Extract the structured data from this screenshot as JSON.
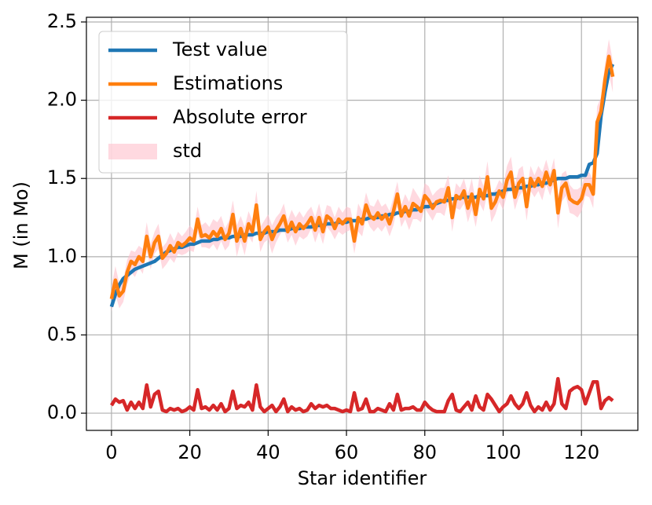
{
  "chart_data": {
    "type": "line",
    "xlabel": "Star identifier",
    "ylabel": "M (in Mo)",
    "xlim": [
      -6.4,
      134.4
    ],
    "ylim": [
      -0.11,
      2.53
    ],
    "xticks": [
      0,
      20,
      40,
      60,
      80,
      100,
      120
    ],
    "yticks": [
      {
        "value": 0,
        "label": "0.0"
      },
      0.5,
      {
        "value": 1,
        "label": "1.0"
      },
      1.5,
      {
        "value": 2,
        "label": "2.0"
      },
      2.5
    ],
    "grid": true,
    "legend": "upper left",
    "x": [
      0,
      1,
      2,
      3,
      4,
      5,
      6,
      7,
      8,
      9,
      10,
      11,
      12,
      13,
      14,
      15,
      16,
      17,
      18,
      19,
      20,
      21,
      22,
      23,
      24,
      25,
      26,
      27,
      28,
      29,
      30,
      31,
      32,
      33,
      34,
      35,
      36,
      37,
      38,
      39,
      40,
      41,
      42,
      43,
      44,
      45,
      46,
      47,
      48,
      49,
      50,
      51,
      52,
      53,
      54,
      55,
      56,
      57,
      58,
      59,
      60,
      61,
      62,
      63,
      64,
      65,
      66,
      67,
      68,
      69,
      70,
      71,
      72,
      73,
      74,
      75,
      76,
      77,
      78,
      79,
      80,
      81,
      82,
      83,
      84,
      85,
      86,
      87,
      88,
      89,
      90,
      91,
      92,
      93,
      94,
      95,
      96,
      97,
      98,
      99,
      100,
      101,
      102,
      103,
      104,
      105,
      106,
      107,
      108,
      109,
      110,
      111,
      112,
      113,
      114,
      115,
      116,
      117,
      118,
      119,
      120,
      121,
      122,
      123,
      124,
      125,
      126,
      127,
      128
    ],
    "series": [
      {
        "name": "Test value",
        "color": "#1f77b4",
        "values": [
          0.68,
          0.76,
          0.82,
          0.86,
          0.88,
          0.9,
          0.92,
          0.93,
          0.94,
          0.95,
          0.96,
          0.97,
          0.99,
          1.01,
          1.03,
          1.04,
          1.05,
          1.06,
          1.06,
          1.07,
          1.08,
          1.08,
          1.09,
          1.1,
          1.1,
          1.1,
          1.11,
          1.11,
          1.12,
          1.12,
          1.12,
          1.13,
          1.13,
          1.13,
          1.14,
          1.14,
          1.14,
          1.15,
          1.15,
          1.15,
          1.16,
          1.16,
          1.16,
          1.17,
          1.17,
          1.17,
          1.18,
          1.18,
          1.18,
          1.19,
          1.19,
          1.19,
          1.2,
          1.2,
          1.2,
          1.21,
          1.21,
          1.21,
          1.22,
          1.22,
          1.22,
          1.23,
          1.23,
          1.23,
          1.24,
          1.24,
          1.25,
          1.25,
          1.25,
          1.26,
          1.26,
          1.27,
          1.27,
          1.28,
          1.28,
          1.29,
          1.29,
          1.3,
          1.3,
          1.31,
          1.32,
          1.32,
          1.33,
          1.34,
          1.35,
          1.36,
          1.36,
          1.37,
          1.37,
          1.38,
          1.38,
          1.38,
          1.38,
          1.38,
          1.39,
          1.39,
          1.39,
          1.4,
          1.4,
          1.41,
          1.42,
          1.43,
          1.43,
          1.44,
          1.44,
          1.44,
          1.45,
          1.45,
          1.46,
          1.46,
          1.47,
          1.47,
          1.48,
          1.49,
          1.5,
          1.5,
          1.5,
          1.51,
          1.51,
          1.51,
          1.52,
          1.52,
          1.59,
          1.6,
          1.66,
          1.9,
          2.05,
          2.18,
          2.23
        ]
      },
      {
        "name": "Estimations",
        "color": "#ff7f0e",
        "values": [
          0.73,
          0.85,
          0.75,
          0.78,
          0.9,
          0.97,
          0.95,
          1.0,
          0.97,
          1.13,
          1.0,
          1.09,
          1.13,
          0.99,
          1.02,
          1.07,
          1.03,
          1.09,
          1.07,
          1.09,
          1.12,
          1.1,
          1.24,
          1.13,
          1.14,
          1.12,
          1.16,
          1.13,
          1.18,
          1.11,
          1.15,
          1.27,
          1.1,
          1.18,
          1.1,
          1.21,
          1.16,
          1.33,
          1.11,
          1.16,
          1.19,
          1.11,
          1.17,
          1.21,
          1.26,
          1.16,
          1.22,
          1.16,
          1.21,
          1.18,
          1.21,
          1.25,
          1.17,
          1.25,
          1.16,
          1.26,
          1.24,
          1.18,
          1.24,
          1.21,
          1.24,
          1.24,
          1.1,
          1.25,
          1.21,
          1.33,
          1.26,
          1.24,
          1.28,
          1.24,
          1.27,
          1.21,
          1.29,
          1.4,
          1.26,
          1.32,
          1.26,
          1.34,
          1.32,
          1.29,
          1.39,
          1.36,
          1.31,
          1.35,
          1.36,
          1.35,
          1.44,
          1.25,
          1.39,
          1.37,
          1.42,
          1.31,
          1.4,
          1.27,
          1.43,
          1.37,
          1.51,
          1.31,
          1.35,
          1.42,
          1.38,
          1.49,
          1.54,
          1.38,
          1.47,
          1.5,
          1.32,
          1.5,
          1.45,
          1.5,
          1.45,
          1.54,
          1.46,
          1.55,
          1.28,
          1.44,
          1.47,
          1.37,
          1.35,
          1.34,
          1.37,
          1.46,
          1.46,
          1.4,
          1.86,
          1.93,
          2.13,
          2.28,
          2.15
        ]
      },
      {
        "name": "Absolute error",
        "color": "#d62728",
        "values": [
          0.05,
          0.09,
          0.07,
          0.08,
          0.02,
          0.07,
          0.03,
          0.07,
          0.03,
          0.18,
          0.04,
          0.12,
          0.14,
          0.02,
          0.01,
          0.03,
          0.02,
          0.03,
          0.01,
          0.02,
          0.04,
          0.02,
          0.15,
          0.03,
          0.04,
          0.02,
          0.05,
          0.02,
          0.06,
          0.01,
          0.03,
          0.14,
          0.03,
          0.05,
          0.04,
          0.07,
          0.02,
          0.18,
          0.04,
          0.01,
          0.03,
          0.05,
          0.01,
          0.04,
          0.09,
          0.01,
          0.04,
          0.02,
          0.03,
          0.01,
          0.02,
          0.06,
          0.03,
          0.05,
          0.04,
          0.05,
          0.03,
          0.03,
          0.02,
          0.01,
          0.02,
          0.01,
          0.13,
          0.02,
          0.03,
          0.09,
          0.01,
          0.01,
          0.03,
          0.02,
          0.01,
          0.06,
          0.02,
          0.12,
          0.02,
          0.03,
          0.03,
          0.04,
          0.02,
          0.02,
          0.07,
          0.04,
          0.02,
          0.01,
          0.01,
          0.01,
          0.08,
          0.12,
          0.02,
          0.01,
          0.04,
          0.07,
          0.02,
          0.11,
          0.04,
          0.02,
          0.12,
          0.09,
          0.05,
          0.01,
          0.04,
          0.06,
          0.11,
          0.06,
          0.03,
          0.06,
          0.13,
          0.05,
          0.01,
          0.04,
          0.02,
          0.07,
          0.02,
          0.06,
          0.22,
          0.06,
          0.03,
          0.14,
          0.16,
          0.17,
          0.15,
          0.06,
          0.13,
          0.2,
          0.2,
          0.03,
          0.08,
          0.1,
          0.08
        ]
      },
      {
        "name": "std",
        "color": "#ffc0cb",
        "values": [
          0.08,
          0.09,
          0.08,
          0.07,
          0.08,
          0.07,
          0.08,
          0.07,
          0.08,
          0.09,
          0.08,
          0.07,
          0.08,
          0.07,
          0.07,
          0.08,
          0.07,
          0.07,
          0.06,
          0.07,
          0.08,
          0.07,
          0.08,
          0.07,
          0.08,
          0.07,
          0.08,
          0.09,
          0.08,
          0.07,
          0.08,
          0.09,
          0.1,
          0.08,
          0.09,
          0.08,
          0.07,
          0.09,
          0.08,
          0.07,
          0.08,
          0.09,
          0.08,
          0.07,
          0.08,
          0.07,
          0.08,
          0.09,
          0.08,
          0.07,
          0.08,
          0.07,
          0.08,
          0.09,
          0.08,
          0.07,
          0.08,
          0.07,
          0.08,
          0.07,
          0.08,
          0.07,
          0.08,
          0.09,
          0.08,
          0.08,
          0.07,
          0.08,
          0.09,
          0.08,
          0.07,
          0.08,
          0.09,
          0.08,
          0.07,
          0.08,
          0.09,
          0.1,
          0.08,
          0.07,
          0.08,
          0.09,
          0.08,
          0.07,
          0.08,
          0.09,
          0.08,
          0.09,
          0.08,
          0.07,
          0.08,
          0.09,
          0.1,
          0.08,
          0.09,
          0.08,
          0.1,
          0.09,
          0.08,
          0.07,
          0.08,
          0.09,
          0.1,
          0.08,
          0.09,
          0.08,
          0.09,
          0.08,
          0.07,
          0.08,
          0.09,
          0.08,
          0.07,
          0.08,
          0.1,
          0.09,
          0.08,
          0.09,
          0.08,
          0.09,
          0.08,
          0.07,
          0.08,
          0.09,
          0.1,
          0.09,
          0.1,
          0.11,
          0.1
        ]
      }
    ]
  }
}
